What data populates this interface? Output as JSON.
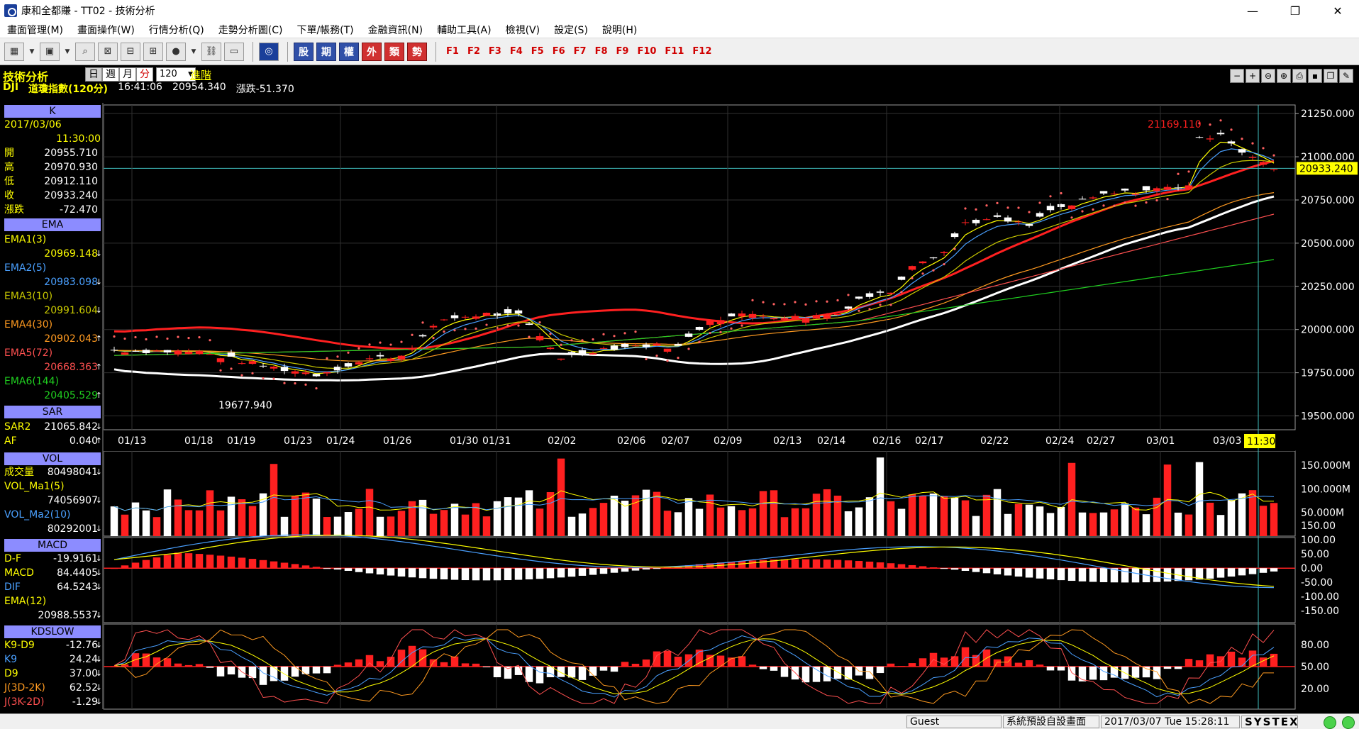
{
  "window": {
    "title": "康和全都賺 - TT02 - 技術分析",
    "minimize": "—",
    "maximize": "❐",
    "close": "✕"
  },
  "menu": [
    "畫面管理(M)",
    "畫面操作(W)",
    "行情分析(Q)",
    "走勢分析圖(C)",
    "下單/帳務(T)",
    "金融資訊(N)",
    "輔助工具(A)",
    "檢視(V)",
    "設定(S)",
    "說明(H)"
  ],
  "toolbar": {
    "cjk_buttons": [
      "股",
      "期",
      "權",
      "外",
      "類",
      "勢"
    ],
    "fkeys": [
      "F1",
      "F2",
      "F3",
      "F4",
      "F5",
      "F6",
      "F7",
      "F8",
      "F9",
      "F10",
      "F11",
      "F12"
    ]
  },
  "header": {
    "section_title": "技術分析",
    "period_tabs": [
      "日",
      "週",
      "月",
      "分"
    ],
    "period_value": "120",
    "advanced_label": "進階",
    "symbol": "DJI",
    "name": "道瓊指數(120分)",
    "time": "16:41:06",
    "price": "20954.340",
    "change_label": "漲跌-51.370"
  },
  "left_panel": {
    "k": {
      "header": "K",
      "date": "2017/03/06",
      "time": "11:30:00",
      "rows": [
        {
          "label": "開",
          "value": "20955.710"
        },
        {
          "label": "高",
          "value": "20970.930"
        },
        {
          "label": "低",
          "value": "20912.110"
        },
        {
          "label": "收",
          "value": "20933.240"
        },
        {
          "label": "漲跌",
          "value": "-72.470"
        }
      ]
    },
    "ema": {
      "header": "EMA",
      "rows": [
        {
          "label": "EMA1(3)",
          "value": "20969.148",
          "color": "#ffff00",
          "arrow": "↓"
        },
        {
          "label": "EMA2(5)",
          "value": "20983.098",
          "color": "#4aa0ff",
          "arrow": "↓"
        },
        {
          "label": "EMA3(10)",
          "value": "20991.604",
          "color": "#c8c800",
          "arrow": "↓"
        },
        {
          "label": "EMA4(30)",
          "value": "20902.043",
          "color": "#ff9a20",
          "arrow": "↑"
        },
        {
          "label": "EMA5(72)",
          "value": "20668.363",
          "color": "#ff5050",
          "arrow": "↑"
        },
        {
          "label": "EMA6(144)",
          "value": "20405.529",
          "color": "#20d020",
          "arrow": "↑"
        }
      ]
    },
    "sar": {
      "header": "SAR",
      "rows": [
        {
          "label": "SAR2",
          "value": "21065.842",
          "arrow": "↓"
        },
        {
          "label": "AF",
          "value": "0.040",
          "arrow": "↑"
        }
      ]
    },
    "vol": {
      "header": "VOL",
      "rows": [
        {
          "label": "成交量",
          "value": "80498041",
          "arrow": "↓"
        },
        {
          "label": "VOL_Ma1(5)",
          "value": "",
          "arrow": ""
        },
        {
          "label": "",
          "value": "74056907",
          "arrow": "↓"
        },
        {
          "label": "VOL_Ma2(10)",
          "value": "",
          "arrow": ""
        },
        {
          "label": "",
          "value": "80292001",
          "arrow": "↓"
        }
      ]
    },
    "macd": {
      "header": "MACD",
      "rows": [
        {
          "label": "D-F",
          "value": "-19.9161",
          "arrow": "↓"
        },
        {
          "label": "MACD",
          "value": "84.4405",
          "arrow": "↓"
        },
        {
          "label": "DIF",
          "value": "64.5243",
          "arrow": "↓"
        },
        {
          "label": "EMA(12)",
          "value": "",
          "arrow": ""
        },
        {
          "label": "",
          "value": "20988.5537",
          "arrow": "↓"
        }
      ]
    },
    "kd": {
      "header": "KDSLOW",
      "rows": [
        {
          "label": "K9-D9",
          "value": "-12.76",
          "arrow": "↓"
        },
        {
          "label": "K9",
          "value": "24.24",
          "arrow": "↓"
        },
        {
          "label": "D9",
          "value": "37.00",
          "arrow": "↓"
        },
        {
          "label": "J(3D-2K)",
          "value": "62.52",
          "arrow": "↓"
        },
        {
          "label": "J(3K-2D)",
          "value": "-1.29",
          "arrow": "↓"
        }
      ]
    }
  },
  "chart": {
    "price_axis": [
      "21250.000",
      "21000.000",
      "20750.000",
      "20500.000",
      "20250.000",
      "20000.000",
      "19750.000",
      "19500.000"
    ],
    "current_price_label": "20933.240",
    "high_label": "21169.110",
    "low_label": "19677.940",
    "date_labels": [
      "01/13",
      "01/18",
      "01/19",
      "01/23",
      "01/24",
      "01/26",
      "01/30",
      "01/31",
      "02/02",
      "02/06",
      "02/07",
      "02/09",
      "02/13",
      "02/14",
      "02/16",
      "02/17",
      "02/22",
      "02/24",
      "02/27",
      "03/01",
      "03/03"
    ],
    "cursor_time": "11:30",
    "vol_axis": [
      "150.000M",
      "100.000M",
      "50.000M"
    ],
    "macd_axis": [
      "150.00",
      "100.00",
      "50.00",
      "0.00",
      "-50.00",
      "-100.00",
      "-150.00"
    ],
    "kd_axis": [
      "80.00",
      "50.00",
      "20.00"
    ]
  },
  "status": {
    "user": "Guest",
    "layout": "系統預設自設畫面",
    "datetime": "2017/03/07 Tue 15:28:11",
    "brand": "SYSTEX"
  }
}
